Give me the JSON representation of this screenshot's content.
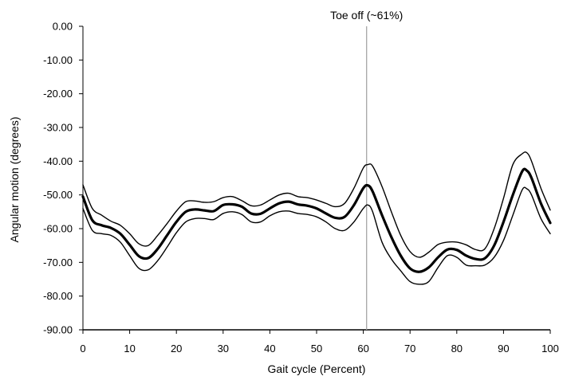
{
  "chart_data": {
    "type": "line",
    "title": "",
    "xlabel": "Gait cycle (Percent)",
    "ylabel": "Angular motion (degrees)",
    "xlim": [
      0,
      100
    ],
    "ylim": [
      -90,
      0
    ],
    "x_ticks": [
      0,
      10,
      20,
      30,
      40,
      50,
      60,
      70,
      80,
      90,
      100
    ],
    "y_ticks": [
      0,
      -10,
      -20,
      -30,
      -40,
      -50,
      -60,
      -70,
      -80,
      -90
    ],
    "y_tick_labels": [
      "0.00",
      "-10.00",
      "-20.00",
      "-30.00",
      "-40.00",
      "-50.00",
      "-60.00",
      "-70.00",
      "-80.00",
      "-90.00"
    ],
    "x_tick_labels": [
      "0",
      "10",
      "20",
      "30",
      "40",
      "50",
      "60",
      "70",
      "80",
      "90",
      "100"
    ],
    "grid": false,
    "x": [
      0,
      2,
      4,
      6,
      8,
      10,
      12,
      14,
      16,
      18,
      20,
      22,
      24,
      26,
      28,
      30,
      32,
      34,
      36,
      38,
      40,
      42,
      44,
      46,
      48,
      50,
      52,
      54,
      56,
      58,
      60,
      61,
      62,
      64,
      66,
      68,
      70,
      72,
      74,
      76,
      78,
      80,
      82,
      84,
      86,
      88,
      90,
      92,
      94,
      95,
      96,
      98,
      100
    ],
    "series": [
      {
        "role": "mean",
        "color": "#000000",
        "values": [
          -50.5,
          -57.5,
          -59.0,
          -59.8,
          -61.5,
          -64.8,
          -68.2,
          -68.7,
          -66.0,
          -62.0,
          -58.0,
          -55.0,
          -54.3,
          -54.6,
          -54.8,
          -53.0,
          -52.8,
          -53.5,
          -55.5,
          -55.6,
          -54.0,
          -52.5,
          -52.0,
          -52.8,
          -53.2,
          -54.0,
          -55.5,
          -56.8,
          -56.5,
          -53.0,
          -48.0,
          -47.2,
          -49.0,
          -56.0,
          -62.5,
          -68.0,
          -71.8,
          -72.8,
          -71.5,
          -68.5,
          -66.2,
          -66.3,
          -68.0,
          -69.0,
          -68.8,
          -65.0,
          -58.0,
          -50.0,
          -43.0,
          -42.8,
          -45.0,
          -52.5,
          -58.3
        ]
      },
      {
        "role": "upper",
        "color": "#000000",
        "values": [
          -47.0,
          -54.0,
          -56.0,
          -57.8,
          -59.0,
          -61.5,
          -64.5,
          -65.0,
          -62.0,
          -58.5,
          -54.8,
          -52.0,
          -51.8,
          -52.2,
          -52.0,
          -50.8,
          -50.5,
          -51.7,
          -53.2,
          -53.0,
          -51.5,
          -50.0,
          -49.5,
          -50.5,
          -50.8,
          -51.5,
          -52.5,
          -53.5,
          -52.5,
          -48.0,
          -42.0,
          -41.0,
          -41.5,
          -47.5,
          -55.0,
          -62.0,
          -66.8,
          -68.5,
          -67.0,
          -64.7,
          -64.0,
          -64.0,
          -64.8,
          -66.2,
          -66.0,
          -60.0,
          -51.0,
          -41.0,
          -37.8,
          -37.5,
          -40.0,
          -48.0,
          -54.5
        ]
      },
      {
        "role": "lower",
        "color": "#000000",
        "values": [
          -54.0,
          -60.5,
          -61.5,
          -62.0,
          -64.0,
          -68.0,
          -71.8,
          -72.2,
          -69.5,
          -65.5,
          -61.2,
          -58.0,
          -57.0,
          -57.0,
          -57.3,
          -55.5,
          -55.0,
          -55.8,
          -58.0,
          -58.0,
          -56.2,
          -55.0,
          -54.8,
          -55.5,
          -55.8,
          -56.5,
          -58.0,
          -60.0,
          -60.5,
          -58.0,
          -54.0,
          -53.0,
          -55.0,
          -64.0,
          -69.0,
          -72.5,
          -75.7,
          -76.5,
          -75.7,
          -71.5,
          -68.0,
          -68.5,
          -70.8,
          -71.0,
          -70.8,
          -68.5,
          -63.5,
          -56.0,
          -48.5,
          -48.2,
          -50.0,
          -57.0,
          -61.5
        ]
      }
    ],
    "annotations": [
      {
        "text": "Toe off (~61%)",
        "x": 60.7,
        "line_color": "#a6a6a6"
      }
    ]
  }
}
